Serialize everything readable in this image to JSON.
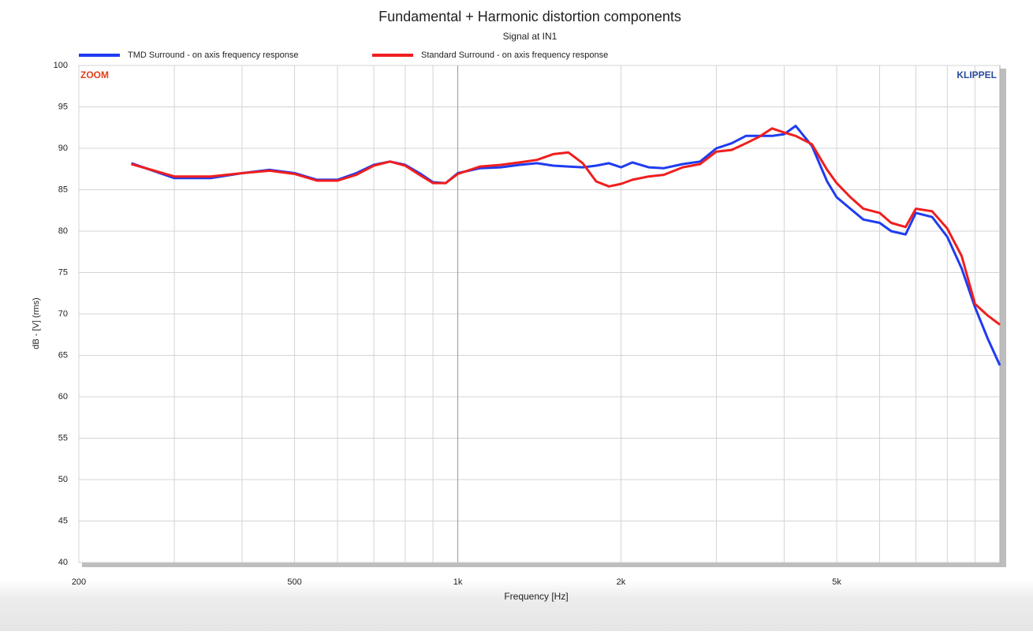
{
  "chart_data": {
    "type": "line",
    "title": "Fundamental + Harmonic distortion components",
    "subtitle": "Signal at IN1",
    "xlabel": "Frequency [Hz]",
    "ylabel": "dB - [V] (rms)",
    "annotations": [
      "ZOOM",
      "KLIPPEL"
    ],
    "xscale": "log",
    "grid": true,
    "legend": "top",
    "xlim": [
      200,
      10000
    ],
    "ylim": [
      40,
      100
    ],
    "xticks": [
      200,
      500,
      {
        "value": 1000,
        "label": "1k"
      },
      {
        "value": 2000,
        "label": "2k"
      },
      {
        "value": 5000,
        "label": "5k"
      }
    ],
    "xgrid": [
      300,
      400,
      600,
      700,
      800,
      900,
      3000,
      4000,
      6000,
      7000,
      8000,
      9000
    ],
    "yticks": [
      40,
      45,
      50,
      55,
      60,
      65,
      70,
      75,
      80,
      85,
      90,
      95,
      100
    ],
    "x": [
      250,
      300,
      350,
      400,
      450,
      500,
      550,
      600,
      650,
      700,
      750,
      800,
      850,
      900,
      950,
      1000,
      1100,
      1200,
      1300,
      1400,
      1500,
      1600,
      1700,
      1800,
      1900,
      2000,
      2100,
      2250,
      2400,
      2600,
      2800,
      3000,
      3200,
      3400,
      3600,
      3800,
      4000,
      4200,
      4500,
      4800,
      5000,
      5300,
      5600,
      6000,
      6300,
      6700,
      7000,
      7500,
      8000,
      8500,
      9000,
      9500,
      10000
    ],
    "series": [
      {
        "name": "TMD Surround - on axis frequency response",
        "color": "#1f3cf0",
        "values": [
          88.2,
          86.4,
          86.4,
          87.0,
          87.4,
          87.0,
          86.2,
          86.2,
          87.0,
          88.0,
          88.4,
          88.0,
          87.0,
          85.9,
          85.8,
          87.0,
          87.6,
          87.7,
          88.0,
          88.2,
          87.9,
          87.8,
          87.7,
          87.9,
          88.2,
          87.7,
          88.3,
          87.7,
          87.6,
          88.1,
          88.4,
          90.0,
          90.6,
          91.5,
          91.5,
          91.5,
          91.7,
          92.7,
          90.3,
          86.0,
          84.1,
          82.7,
          81.4,
          81.0,
          80.0,
          79.6,
          82.2,
          81.7,
          79.3,
          75.5,
          70.8,
          67.0,
          63.8
        ]
      },
      {
        "name": "Standard Surround - on axis frequency response",
        "color": "#f01e1e",
        "values": [
          88.1,
          86.6,
          86.6,
          87.0,
          87.3,
          86.9,
          86.1,
          86.1,
          86.8,
          87.9,
          88.4,
          87.9,
          86.8,
          85.8,
          85.8,
          86.9,
          87.8,
          88.0,
          88.3,
          88.6,
          89.3,
          89.5,
          88.2,
          86.0,
          85.4,
          85.7,
          86.2,
          86.6,
          86.8,
          87.7,
          88.1,
          89.6,
          89.8,
          90.6,
          91.4,
          92.4,
          91.9,
          91.5,
          90.5,
          87.4,
          85.8,
          84.1,
          82.7,
          82.2,
          81.0,
          80.5,
          82.7,
          82.4,
          80.3,
          77.0,
          71.2,
          69.8,
          68.7
        ]
      }
    ]
  }
}
